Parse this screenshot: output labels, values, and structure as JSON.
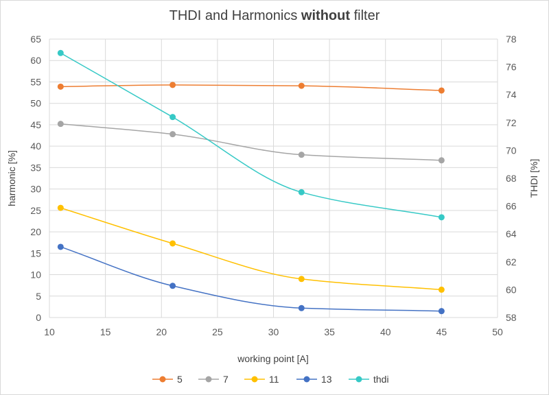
{
  "chart_data": {
    "type": "line",
    "title": {
      "part1": "THDI and Harmonics ",
      "bold": "without",
      "part2": " filter"
    },
    "xlabel": "working point [A]",
    "ylabel_left": "harmonic [%]",
    "ylabel_right": "THDI [%]",
    "xlim": [
      10,
      50
    ],
    "ylim_left": [
      0,
      65
    ],
    "ylim_right": [
      58,
      78
    ],
    "x_ticks": [
      10,
      15,
      20,
      25,
      30,
      35,
      40,
      45,
      50
    ],
    "y_left_ticks": [
      0,
      5,
      10,
      15,
      20,
      25,
      30,
      35,
      40,
      45,
      50,
      55,
      60,
      65
    ],
    "y_right_ticks": [
      58,
      60,
      62,
      64,
      66,
      68,
      70,
      72,
      74,
      76,
      78
    ],
    "grid": true,
    "legend_position": "bottom",
    "x": [
      11,
      21,
      32.5,
      45
    ],
    "series": [
      {
        "name": "5",
        "axis": "left",
        "color": "#ED7D31",
        "values": [
          53.9,
          54.3,
          54.1,
          53.0
        ]
      },
      {
        "name": "7",
        "axis": "left",
        "color": "#A5A5A5",
        "values": [
          45.2,
          42.8,
          38.0,
          36.7
        ]
      },
      {
        "name": "11",
        "axis": "left",
        "color": "#FFC000",
        "values": [
          25.6,
          17.3,
          9.0,
          6.5
        ]
      },
      {
        "name": "13",
        "axis": "left",
        "color": "#4472C4",
        "values": [
          16.5,
          7.4,
          2.2,
          1.5
        ]
      },
      {
        "name": "thdi",
        "axis": "right",
        "color": "#36C9C6",
        "values": [
          77.0,
          72.4,
          67.0,
          65.2
        ]
      }
    ]
  }
}
